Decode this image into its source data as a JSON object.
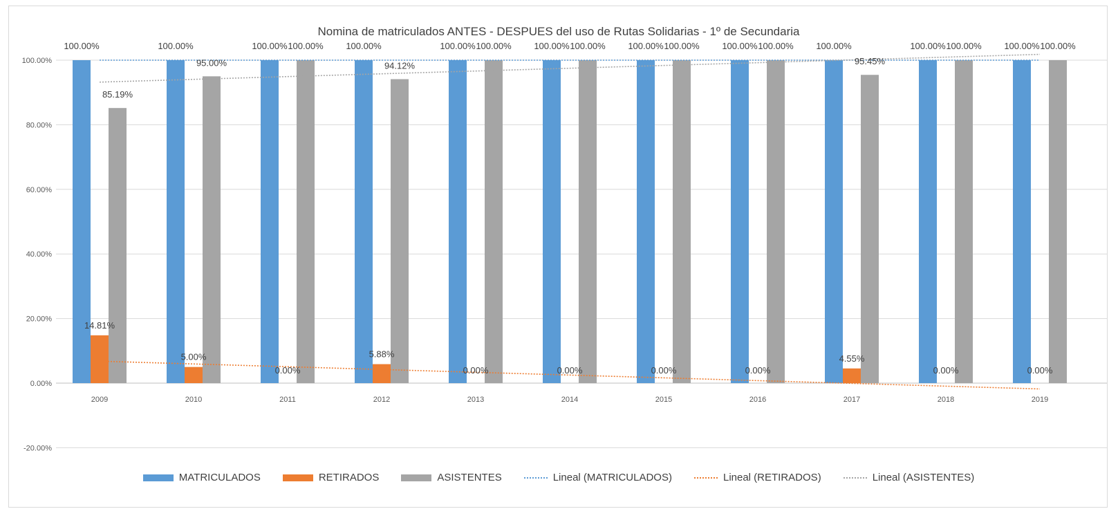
{
  "chart_data": {
    "type": "bar",
    "title": "Nomina de matriculados ANTES - DESPUES del uso de Rutas Solidarias - 1º de Secundaria",
    "xlabel": "",
    "ylabel": "",
    "ylim": [
      -0.2,
      1.0
    ],
    "y_ticks": [
      -0.2,
      0.0,
      0.2,
      0.4,
      0.6,
      0.8,
      1.0
    ],
    "y_tick_labels": [
      "-20.00%",
      "0.00%",
      "20.00%",
      "40.00%",
      "60.00%",
      "80.00%",
      "100.00%"
    ],
    "grid": true,
    "legend_position": "bottom",
    "categories": [
      "2009",
      "2010",
      "2011",
      "2012",
      "2013",
      "2014",
      "2015",
      "2016",
      "2017",
      "2018",
      "2019"
    ],
    "series": [
      {
        "name": "MATRICULADOS",
        "color": "#5b9bd5",
        "values": [
          1,
          1,
          1,
          1,
          1,
          1,
          1,
          1,
          1,
          1,
          1
        ],
        "labels": [
          "100.00%",
          "100.00%",
          "100.00%",
          "100.00%",
          "100.00%",
          "100.00%",
          "100.00%",
          "100.00%",
          "100.00%",
          "100.00%",
          "100.00%"
        ]
      },
      {
        "name": "RETIRADOS",
        "color": "#ed7d31",
        "values": [
          0.1481,
          0.05,
          0,
          0.0588,
          0,
          0,
          0,
          0,
          0.0455,
          0,
          0
        ],
        "labels": [
          "14.81%",
          "5.00%",
          "0.00%",
          "5.88%",
          "0.00%",
          "0.00%",
          "0.00%",
          "0.00%",
          "4.55%",
          "0.00%",
          "0.00%"
        ]
      },
      {
        "name": "ASISTENTES",
        "color": "#a5a5a5",
        "values": [
          0.8519,
          0.95,
          1,
          0.9412,
          1,
          1,
          1,
          1,
          0.9545,
          1,
          1
        ],
        "labels": [
          "85.19%",
          "95.00%",
          "100.00%",
          "94.12%",
          "100.00%",
          "100.00%",
          "100.00%",
          "100.00%",
          "95.45%",
          "100.00%",
          "100.00%"
        ]
      }
    ],
    "trendlines": [
      {
        "name": "Lineal (MATRICULADOS)",
        "color": "#5b9bd5",
        "start": 1.0,
        "end": 1.0
      },
      {
        "name": "Lineal (RETIRADOS)",
        "color": "#ed7d31",
        "start": 0.068,
        "end": -0.018
      },
      {
        "name": "Lineal (ASISTENTES)",
        "color": "#a5a5a5",
        "start": 0.932,
        "end": 1.018
      }
    ]
  }
}
